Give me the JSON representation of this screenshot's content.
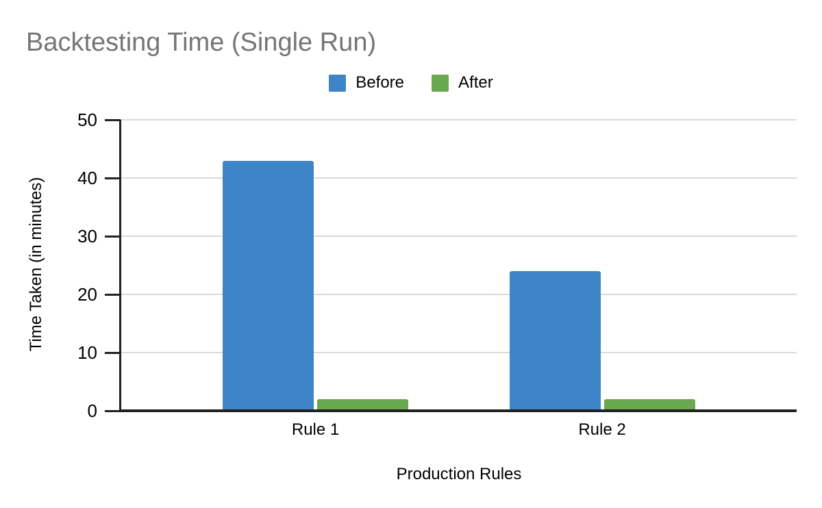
{
  "chart_data": {
    "type": "bar",
    "title": "Backtesting Time (Single Run)",
    "categories": [
      "Rule 1",
      "Rule 2"
    ],
    "series": [
      {
        "name": "Before",
        "color": "#3d85c6",
        "values": [
          43,
          24
        ]
      },
      {
        "name": "After",
        "color": "#6aa84f",
        "values": [
          2,
          2
        ]
      }
    ],
    "xlabel": "Production Rules",
    "ylabel": "Time Taken (in minutes)",
    "ylim": [
      0,
      50
    ],
    "yticks": [
      0,
      10,
      20,
      30,
      40,
      50
    ],
    "grid": "horizontal",
    "legend_position": "top-center",
    "title_color": "#757575",
    "axis_color": "#212121",
    "gridline_color": "#d9d9d9"
  }
}
